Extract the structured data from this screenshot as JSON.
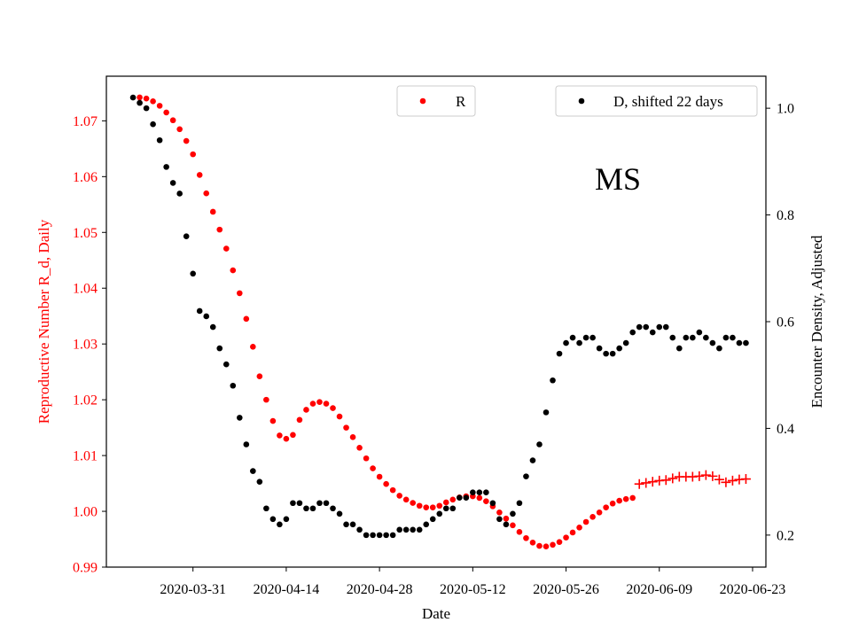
{
  "chart_data": {
    "type": "scatter",
    "title": "",
    "annotation": "MS",
    "xlabel": "Date",
    "ylabel_left": "Reproductive Number R_d, Daily",
    "ylabel_right": "Encounter Density, Adjusted",
    "xlim": [
      "2020-03-18",
      "2020-06-25"
    ],
    "ylim_left": [
      0.99,
      1.078
    ],
    "ylim_right": [
      0.14,
      1.06
    ],
    "x_ticks": [
      "2020-03-31",
      "2020-04-14",
      "2020-04-28",
      "2020-05-12",
      "2020-05-26",
      "2020-06-09",
      "2020-06-23"
    ],
    "y_ticks_left": [
      "0.99",
      "1.00",
      "1.01",
      "1.02",
      "1.03",
      "1.04",
      "1.05",
      "1.06",
      "1.07"
    ],
    "y_ticks_right": [
      "0.2",
      "0.4",
      "0.6",
      "0.8",
      "1.0"
    ],
    "grid": false,
    "colors": {
      "R": "#ff0000",
      "D": "#000000",
      "left_axis_text": "#ff0000"
    },
    "legends": [
      {
        "label": "R",
        "placement": "top-center",
        "color": "#ff0000"
      },
      {
        "label": "D, shifted 22 days",
        "placement": "top-right",
        "color": "#000000"
      }
    ],
    "series": [
      {
        "name": "R",
        "axis": "left",
        "marker": "dot",
        "color": "#ff0000",
        "x": [
          "2020-03-23",
          "2020-03-24",
          "2020-03-25",
          "2020-03-26",
          "2020-03-27",
          "2020-03-28",
          "2020-03-29",
          "2020-03-30",
          "2020-03-31",
          "2020-04-01",
          "2020-04-02",
          "2020-04-03",
          "2020-04-04",
          "2020-04-05",
          "2020-04-06",
          "2020-04-07",
          "2020-04-08",
          "2020-04-09",
          "2020-04-10",
          "2020-04-11",
          "2020-04-12",
          "2020-04-13",
          "2020-04-14",
          "2020-04-15",
          "2020-04-16",
          "2020-04-17",
          "2020-04-18",
          "2020-04-19",
          "2020-04-20",
          "2020-04-21",
          "2020-04-22",
          "2020-04-23",
          "2020-04-24",
          "2020-04-25",
          "2020-04-26",
          "2020-04-27",
          "2020-04-28",
          "2020-04-29",
          "2020-04-30",
          "2020-05-01",
          "2020-05-02",
          "2020-05-03",
          "2020-05-04",
          "2020-05-05",
          "2020-05-06",
          "2020-05-07",
          "2020-05-08",
          "2020-05-09",
          "2020-05-10",
          "2020-05-11",
          "2020-05-12",
          "2020-05-13",
          "2020-05-14",
          "2020-05-15",
          "2020-05-16",
          "2020-05-17",
          "2020-05-18",
          "2020-05-19",
          "2020-05-20",
          "2020-05-21",
          "2020-05-22",
          "2020-05-23",
          "2020-05-24",
          "2020-05-25",
          "2020-05-26",
          "2020-05-27",
          "2020-05-28",
          "2020-05-29",
          "2020-05-30",
          "2020-05-31",
          "2020-06-01",
          "2020-06-02",
          "2020-06-03",
          "2020-06-04",
          "2020-06-05"
        ],
        "y": [
          1.0742,
          1.074,
          1.0735,
          1.0727,
          1.0715,
          1.0701,
          1.0685,
          1.0664,
          1.064,
          1.0603,
          1.057,
          1.0537,
          1.0505,
          1.0471,
          1.0432,
          1.0391,
          1.0345,
          1.0295,
          1.0242,
          1.02,
          1.0162,
          1.0136,
          1.013,
          1.0137,
          1.0164,
          1.0182,
          1.0193,
          1.0196,
          1.0193,
          1.0185,
          1.017,
          1.015,
          1.0133,
          1.0114,
          1.0095,
          1.0077,
          1.0062,
          1.0049,
          1.0038,
          1.0028,
          1.0021,
          1.0015,
          1.001,
          1.0007,
          1.0007,
          1.001,
          1.0016,
          1.0021,
          1.0025,
          1.0027,
          1.0027,
          1.0024,
          1.0018,
          1.0009,
          0.9998,
          0.9987,
          0.9975,
          0.9963,
          0.9952,
          0.9944,
          0.9938,
          0.9937,
          0.994,
          0.9945,
          0.9953,
          0.9962,
          0.9971,
          0.9981,
          0.999,
          0.9998,
          1.0007,
          1.0014,
          1.0019,
          1.0022,
          1.0024
        ]
      },
      {
        "name": "R",
        "axis": "left",
        "marker": "plus",
        "color": "#ff0000",
        "x": [
          "2020-06-06",
          "2020-06-07",
          "2020-06-08",
          "2020-06-09",
          "2020-06-10",
          "2020-06-11",
          "2020-06-12",
          "2020-06-13",
          "2020-06-14",
          "2020-06-15",
          "2020-06-16",
          "2020-06-17",
          "2020-06-18",
          "2020-06-19",
          "2020-06-20",
          "2020-06-21",
          "2020-06-22"
        ],
        "y": [
          1.0049,
          1.0051,
          1.0053,
          1.0055,
          1.0056,
          1.0059,
          1.0062,
          1.0062,
          1.0062,
          1.0063,
          1.0065,
          1.0063,
          1.0057,
          1.0052,
          1.0055,
          1.0057,
          1.0058
        ]
      },
      {
        "name": "D, shifted 22 days",
        "axis": "right",
        "marker": "dot",
        "color": "#000000",
        "x": [
          "2020-03-22",
          "2020-03-23",
          "2020-03-24",
          "2020-03-25",
          "2020-03-26",
          "2020-03-27",
          "2020-03-28",
          "2020-03-29",
          "2020-03-30",
          "2020-03-31",
          "2020-04-01",
          "2020-04-02",
          "2020-04-03",
          "2020-04-04",
          "2020-04-05",
          "2020-04-06",
          "2020-04-07",
          "2020-04-08",
          "2020-04-09",
          "2020-04-10",
          "2020-04-11",
          "2020-04-12",
          "2020-04-13",
          "2020-04-14",
          "2020-04-15",
          "2020-04-16",
          "2020-04-17",
          "2020-04-18",
          "2020-04-19",
          "2020-04-20",
          "2020-04-21",
          "2020-04-22",
          "2020-04-23",
          "2020-04-24",
          "2020-04-25",
          "2020-04-26",
          "2020-04-27",
          "2020-04-28",
          "2020-04-29",
          "2020-04-30",
          "2020-05-01",
          "2020-05-02",
          "2020-05-03",
          "2020-05-04",
          "2020-05-05",
          "2020-05-06",
          "2020-05-07",
          "2020-05-08",
          "2020-05-09",
          "2020-05-10",
          "2020-05-11",
          "2020-05-12",
          "2020-05-13",
          "2020-05-14",
          "2020-05-15",
          "2020-05-16",
          "2020-05-17",
          "2020-05-18",
          "2020-05-19",
          "2020-05-20",
          "2020-05-21",
          "2020-05-22",
          "2020-05-23",
          "2020-05-24",
          "2020-05-25",
          "2020-05-26",
          "2020-05-27",
          "2020-05-28",
          "2020-05-29",
          "2020-05-30",
          "2020-05-31",
          "2020-06-01",
          "2020-06-02",
          "2020-06-03",
          "2020-06-04",
          "2020-06-05",
          "2020-06-06",
          "2020-06-07",
          "2020-06-08",
          "2020-06-09",
          "2020-06-10",
          "2020-06-11",
          "2020-06-12",
          "2020-06-13",
          "2020-06-14",
          "2020-06-15",
          "2020-06-16",
          "2020-06-17",
          "2020-06-18",
          "2020-06-19",
          "2020-06-20",
          "2020-06-21",
          "2020-06-22"
        ],
        "y": [
          1.02,
          1.01,
          1.0,
          0.97,
          0.94,
          0.89,
          0.86,
          0.84,
          0.76,
          0.69,
          0.62,
          0.61,
          0.59,
          0.55,
          0.52,
          0.48,
          0.42,
          0.37,
          0.32,
          0.3,
          0.25,
          0.23,
          0.22,
          0.23,
          0.26,
          0.26,
          0.25,
          0.25,
          0.26,
          0.26,
          0.25,
          0.24,
          0.22,
          0.22,
          0.21,
          0.2,
          0.2,
          0.2,
          0.2,
          0.2,
          0.21,
          0.21,
          0.21,
          0.21,
          0.22,
          0.23,
          0.24,
          0.25,
          0.25,
          0.27,
          0.27,
          0.28,
          0.28,
          0.28,
          0.26,
          0.23,
          0.22,
          0.24,
          0.26,
          0.31,
          0.34,
          0.37,
          0.43,
          0.49,
          0.54,
          0.56,
          0.57,
          0.56,
          0.57,
          0.57,
          0.55,
          0.54,
          0.54,
          0.55,
          0.56,
          0.58,
          0.59,
          0.59,
          0.58,
          0.59,
          0.59,
          0.57,
          0.55,
          0.57,
          0.57,
          0.58,
          0.57,
          0.56,
          0.55,
          0.57,
          0.57,
          0.56,
          0.56
        ]
      }
    ]
  }
}
